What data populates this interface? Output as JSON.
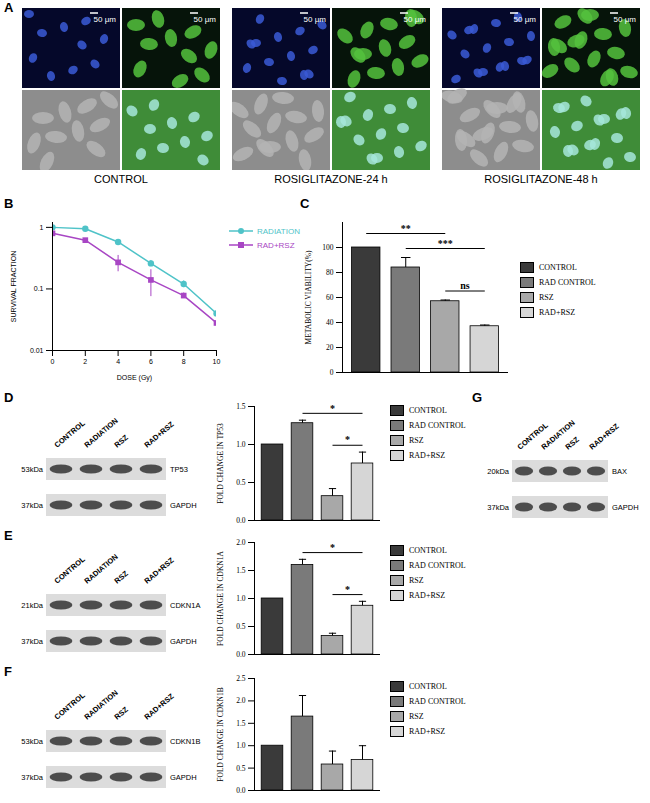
{
  "chart_data": [
    {
      "type": "line",
      "panel": "B",
      "xlabel": "DOSE (Gy)",
      "ylabel": "SURVIVAL FRACTION",
      "x": [
        0,
        2,
        4,
        6,
        8,
        10
      ],
      "xlim": [
        0,
        10
      ],
      "xticks": [
        0,
        2,
        4,
        6,
        8,
        10
      ],
      "log": "y",
      "ylim": [
        0.01,
        1.2
      ],
      "yticks": [
        0.01,
        0.1,
        1
      ],
      "grid": false,
      "legend": "right",
      "series": [
        {
          "name": "RADIATION",
          "color": "#4fc3c8",
          "marker": "circle",
          "values": [
            1,
            0.95,
            0.58,
            0.26,
            0.12,
            0.04
          ],
          "errors": [
            0.02,
            0.03,
            0.04,
            0.03,
            0.015,
            0.004
          ]
        },
        {
          "name": "RAD+RSZ",
          "color": "#a846c4",
          "marker": "square",
          "values": [
            0.8,
            0.62,
            0.27,
            0.14,
            0.078,
            0.028
          ],
          "errors": [
            0.05,
            0.04,
            0.08,
            0.065,
            0.008,
            0.006
          ]
        }
      ]
    },
    {
      "type": "bar",
      "panel": "C",
      "ylabel": "METABOLIC VIABILITY(%)",
      "categories": [
        null
      ],
      "ylim": [
        0,
        120
      ],
      "yticks": [
        0,
        20,
        40,
        60,
        80,
        100
      ],
      "grid": false,
      "legend": "right",
      "series": [
        {
          "name": "CONTROL",
          "color": "#3a3a3a",
          "values": [
            100
          ],
          "errors": [
            0
          ]
        },
        {
          "name": "RAD CONTROL",
          "color": "#7a7a7a",
          "values": [
            84
          ],
          "errors": [
            8
          ]
        },
        {
          "name": "RSZ",
          "color": "#a8a8a8",
          "values": [
            57
          ],
          "errors": [
            1
          ]
        },
        {
          "name": "RAD+RSZ",
          "color": "#d6d6d6",
          "values": [
            37
          ],
          "errors": [
            1
          ]
        }
      ],
      "significance": [
        {
          "from": "RAD CONTROL",
          "to": "RAD+RSZ",
          "label": "***"
        },
        {
          "from": "CONTROL",
          "to": "RSZ",
          "label": "**"
        },
        {
          "from": "RSZ",
          "to": "RAD+RSZ",
          "label": "ns"
        }
      ]
    },
    {
      "type": "bar",
      "ylabel": "FOLD CHANGE IN TP53",
      "categories": [
        null
      ],
      "ylim": [
        0,
        1.5
      ],
      "yticks": [
        {
          "value": 0,
          "label": "0.0"
        },
        0.5,
        {
          "value": 1,
          "label": "1.0"
        },
        1.5
      ],
      "grid": false,
      "legend": "right",
      "series": [
        {
          "name": "CONTROL",
          "color": "#3a3a3a",
          "values": [
            1.0
          ],
          "errors": [
            0
          ]
        },
        {
          "name": "RAD CONTROL",
          "color": "#7a7a7a",
          "values": [
            1.28
          ],
          "errors": [
            0.04
          ]
        },
        {
          "name": "RSZ",
          "color": "#a8a8a8",
          "values": [
            0.32
          ],
          "errors": [
            0.1
          ]
        },
        {
          "name": "RAD+RSZ",
          "color": "#d6d6d6",
          "values": [
            0.75
          ],
          "errors": [
            0.15
          ]
        }
      ],
      "significance": [
        {
          "from": "RAD CONTROL",
          "to": "RAD+RSZ",
          "label": "*"
        },
        {
          "from": "RSZ",
          "to": "RAD+RSZ",
          "label": "*"
        }
      ]
    },
    {
      "type": "bar",
      "ylabel": "FOLD CHANGE IN CDKN1A",
      "categories": [
        null
      ],
      "ylim": [
        0,
        2.0
      ],
      "yticks": [
        {
          "value": 0,
          "label": "0.0"
        },
        0.5,
        {
          "value": 1,
          "label": "1.0"
        },
        1.5,
        {
          "value": 2,
          "label": "2.0"
        }
      ],
      "grid": false,
      "legend": "right",
      "series": [
        {
          "name": "CONTROL",
          "color": "#3a3a3a",
          "values": [
            1.0
          ],
          "errors": [
            0
          ]
        },
        {
          "name": "RAD CONTROL",
          "color": "#7a7a7a",
          "values": [
            1.6
          ],
          "errors": [
            0.1
          ]
        },
        {
          "name": "RSZ",
          "color": "#a8a8a8",
          "values": [
            0.33
          ],
          "errors": [
            0.05
          ]
        },
        {
          "name": "RAD+RSZ",
          "color": "#d6d6d6",
          "values": [
            0.87
          ],
          "errors": [
            0.08
          ]
        }
      ],
      "significance": [
        {
          "from": "RAD CONTROL",
          "to": "RAD+RSZ",
          "label": "*"
        },
        {
          "from": "RSZ",
          "to": "RAD+RSZ",
          "label": "*"
        }
      ]
    },
    {
      "type": "bar",
      "ylabel": "FOLD CHANGE IN CDKN1B",
      "categories": [
        null
      ],
      "ylim": [
        0,
        2.5
      ],
      "yticks": [
        {
          "value": 0,
          "label": "0.0"
        },
        0.5,
        {
          "value": 1,
          "label": "1.0"
        },
        1.5,
        {
          "value": 2,
          "label": "2.0"
        },
        2.5
      ],
      "grid": false,
      "legend": "right",
      "series": [
        {
          "name": "CONTROL",
          "color": "#3a3a3a",
          "values": [
            1.0
          ],
          "errors": [
            0
          ]
        },
        {
          "name": "RAD CONTROL",
          "color": "#7a7a7a",
          "values": [
            1.65
          ],
          "errors": [
            0.47
          ]
        },
        {
          "name": "RSZ",
          "color": "#a8a8a8",
          "values": [
            0.58
          ],
          "errors": [
            0.3
          ]
        },
        {
          "name": "RAD+RSZ",
          "color": "#d6d6d6",
          "values": [
            0.68
          ],
          "errors": [
            0.32
          ]
        }
      ],
      "significance": []
    }
  ],
  "images": {
    "panel": "A",
    "scale_bar": "50 μm",
    "conditions": [
      "CONTROL",
      "ROSIGLITAZONE-24 h",
      "ROSIGLITAZONE-48 h"
    ]
  },
  "blots": [
    {
      "panel": "D",
      "lanes": [
        "CONTROL",
        "RADIATION",
        "RSZ",
        "RAD+RSZ"
      ],
      "bands": [
        {
          "size": "53kDa",
          "protein": "TP53"
        },
        {
          "size": "37kDa",
          "protein": "GAPDH"
        }
      ]
    },
    {
      "panel": "E",
      "lanes": [
        "CONTROL",
        "RADIATION",
        "RSZ",
        "RAD+RSZ"
      ],
      "bands": [
        {
          "size": "21kDa",
          "protein": "CDKN1A"
        },
        {
          "size": "37kDa",
          "protein": "GAPDH"
        }
      ]
    },
    {
      "panel": "F",
      "lanes": [
        "CONTROL",
        "RADIATION",
        "RSZ",
        "RAD+RSZ"
      ],
      "bands": [
        {
          "size": "53kDa",
          "protein": "CDKN1B"
        },
        {
          "size": "37kDa",
          "protein": "GAPDH"
        }
      ]
    },
    {
      "panel": "G",
      "lanes": [
        "CONTROL",
        "RADIATION",
        "RSZ",
        "RAD+RSZ"
      ],
      "bands": [
        {
          "size": "20kDa",
          "protein": "BAX"
        },
        {
          "size": "37kDa",
          "protein": "GAPDH"
        }
      ]
    }
  ]
}
